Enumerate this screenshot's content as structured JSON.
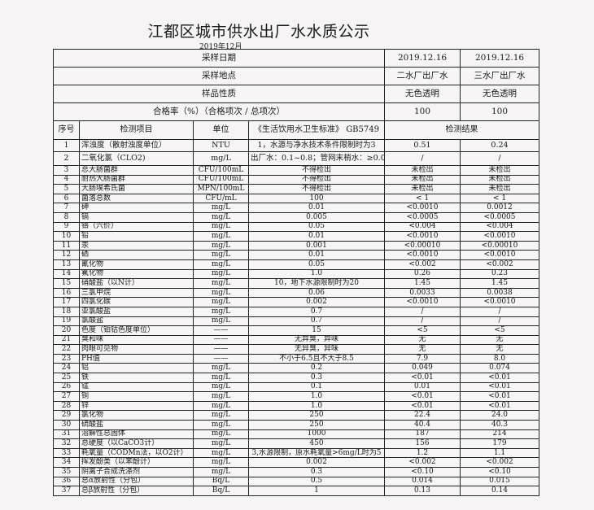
{
  "title": "江都区城市供水出厂水水质公示",
  "subtitle": "2019年12月",
  "meta": [
    {
      "label": "采样日期",
      "v1": "2019.12.16",
      "v2": "2019.12.16"
    },
    {
      "label": "采样地点",
      "v1": "二水厂出厂水",
      "v2": "三水厂出厂水"
    },
    {
      "label": "样品性质",
      "v1": "无色透明",
      "v2": "无色透明"
    },
    {
      "label": "合格率（%）（合格项次 / 总项次）",
      "v1": "100",
      "v2": "100"
    }
  ],
  "columns": {
    "seq": "序号",
    "item": "检测项目",
    "unit": "单位",
    "standard": "《生活饮用水卫生标准》 GB5749",
    "result": "检测结果"
  },
  "rows": [
    [
      "1",
      "浑浊度（散射浊度单位）",
      "NTU",
      "1，水源与净水技术条件限制时为3",
      "0.51",
      "0.24"
    ],
    [
      "2",
      "二氧化氯（CLO2)",
      "mg/L",
      "出厂水：0.1~0.8；管网末梢水：≥0.02",
      "/",
      "/"
    ],
    [
      "3",
      "总大肠菌群",
      "CFU/100mL",
      "不得检出",
      "未检出",
      "未检出"
    ],
    [
      "4",
      "耐热大肠菌群",
      "CFU/100mL",
      "不得检出",
      "未检出",
      "未检出"
    ],
    [
      "5",
      "大肠埃希氏菌",
      "MPN/100mL",
      "不得检出",
      "未检出",
      "未检出"
    ],
    [
      "6",
      "菌落总数",
      "CFU/mL",
      "100",
      "< 1",
      "< 1"
    ],
    [
      "7",
      "砷",
      "mg/L",
      "0.01",
      "<0.0010",
      "0.0012"
    ],
    [
      "8",
      "镉",
      "mg/L",
      "0.005",
      "<0.0005",
      "<0.0005"
    ],
    [
      "9",
      "铬（六价）",
      "mg/L",
      "0.05",
      "<0.004",
      "<0.004"
    ],
    [
      "10",
      "铅",
      "mg/L",
      "0.01",
      "<0.0010",
      "<0.0010"
    ],
    [
      "11",
      "汞",
      "mg/L",
      "0.001",
      "<0.00010",
      "<0.00010"
    ],
    [
      "12",
      "硒",
      "mg/L",
      "0.01",
      "<0.0010",
      "<0.0010"
    ],
    [
      "13",
      "氰化物",
      "mg/L",
      "0.05",
      "<0.002",
      "<0.002"
    ],
    [
      "14",
      "氟化物",
      "mg/L",
      "1.0",
      "0.26",
      "0.23"
    ],
    [
      "15",
      "硝酸盐（以N计）",
      "mg/L",
      "10，地下水源限制时为20",
      "1.45",
      "1.45"
    ],
    [
      "16",
      "三氯甲烷",
      "mg/L",
      "0.06",
      "0.0033",
      "0.0038"
    ],
    [
      "17",
      "四氯化碳",
      "mg/L",
      "0.002",
      "<0.0010",
      "<0.0010"
    ],
    [
      "18",
      "亚氯酸盐",
      "mg/L",
      "0.7",
      "/",
      "/"
    ],
    [
      "19",
      "氯酸盐",
      "mg/L",
      "0.7",
      "/",
      "/"
    ],
    [
      "20",
      "色度（铂钴色度单位）",
      "——",
      "15",
      "<5",
      "<5"
    ],
    [
      "21",
      "臭和味",
      "——",
      "无异臭，异味",
      "无",
      "无"
    ],
    [
      "22",
      "肉眼可见物",
      "——",
      "无异臭，异味",
      "无",
      "无"
    ],
    [
      "23",
      "PH值",
      "——",
      "不小于6.5且不大于8.5",
      "7.9",
      "8.0"
    ],
    [
      "24",
      "铝",
      "mg/L",
      "0.2",
      "0.049",
      "0.074"
    ],
    [
      "25",
      "铁",
      "mg/L",
      "0.3",
      "<0.01",
      "<0.01"
    ],
    [
      "26",
      "锰",
      "mg/L",
      "0.1",
      "0.01",
      "<0.01"
    ],
    [
      "27",
      "铜",
      "mg/L",
      "1.0",
      "<0.01",
      "<0.01"
    ],
    [
      "28",
      "锌",
      "mg/L",
      "1.0",
      "<0.01",
      "<0.01"
    ],
    [
      "29",
      "氯化物",
      "mg/L",
      "250",
      "22.4",
      "24.0"
    ],
    [
      "30",
      "硫酸盐",
      "mg/L",
      "250",
      "40.4",
      "40.3"
    ],
    [
      "31",
      "溶解性总固体",
      "mg/L",
      "1000",
      "187",
      "214"
    ],
    [
      "32",
      "总硬度（以CaCO3计）",
      "mg/L",
      "450",
      "156",
      "179"
    ],
    [
      "33",
      "耗氧量（CODMn法，以O2计）",
      "mg/L",
      "3,水源限制，原水耗氧量>6mg/L时为5",
      "1.2",
      "1.1"
    ],
    [
      "34",
      "挥发酚类（以苯酚计）",
      "mg/L",
      "0.002",
      "<0.002",
      "<0.002"
    ],
    [
      "35",
      "阴离子合成洗涤剂",
      "mg/L",
      "0.3",
      "<0.10",
      "<0.10"
    ],
    [
      "36",
      "总α放射性（分包）",
      "Bq/L",
      "0.5",
      "0.014",
      "0.015"
    ],
    [
      "37",
      "总β放射性（分包）",
      "Bq/L",
      "1",
      "0.13",
      "0.14"
    ]
  ]
}
